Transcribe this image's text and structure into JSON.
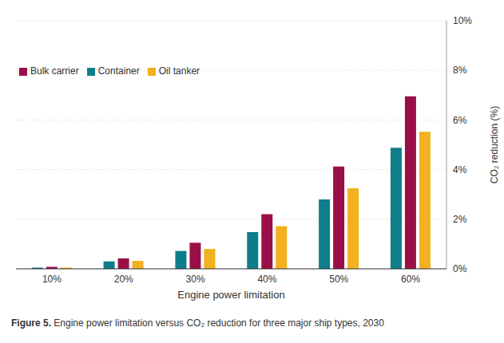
{
  "chart_data": {
    "type": "bar",
    "title": "Figure 5. Engine power limitation versus CO₂ reduction for three major ship types, 2030",
    "x_label": "Engine power limitation",
    "y_label": "CO₂ reduction (%)",
    "categories": [
      "10%",
      "20%",
      "30%",
      "40%",
      "50%",
      "60%"
    ],
    "series": [
      {
        "name": "Container",
        "color": "#0f7d8b",
        "values": [
          0.05,
          0.3,
          0.72,
          1.48,
          2.8,
          4.88
        ]
      },
      {
        "name": "Bulk carrier",
        "color": "#9b0f47",
        "values": [
          0.08,
          0.42,
          1.05,
          2.2,
          4.12,
          6.95
        ]
      },
      {
        "name": "Oil tanker",
        "color": "#f2b11e",
        "values": [
          0.05,
          0.32,
          0.8,
          1.72,
          3.25,
          5.52
        ]
      }
    ],
    "ylim": [
      0,
      10
    ],
    "yticks": [
      {
        "value": 0,
        "label": "0%"
      },
      {
        "value": 2,
        "label": "2%"
      },
      {
        "value": 4,
        "label": "4%"
      },
      {
        "value": 6,
        "label": "6%"
      },
      {
        "value": 8,
        "label": "8%"
      },
      {
        "value": 10,
        "label": "10%"
      }
    ],
    "grid": true,
    "legend": "upper left"
  }
}
